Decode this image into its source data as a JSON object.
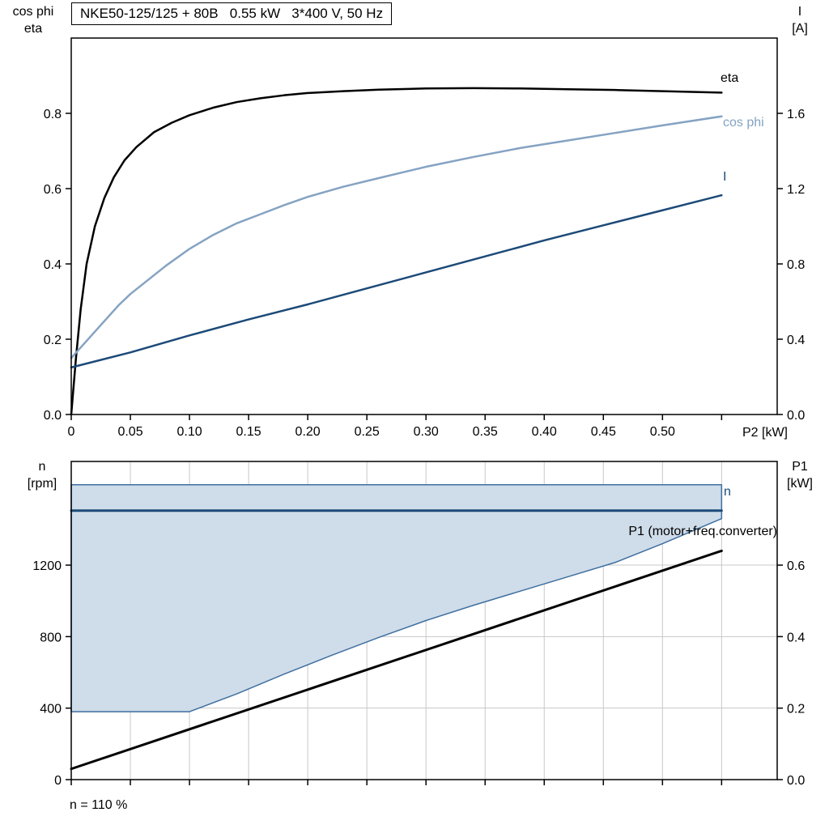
{
  "title": "NKE50-125/125 + 80B   0.55 kW   3*400 V, 50 Hz",
  "colors": {
    "axis": "#000000",
    "grid": "#c8c8c8",
    "cos_phi_blue": "#85a3c2",
    "dark_blue": "#1c4a78",
    "band_fill": "#cfdce9",
    "band_stroke": "#3f6fa0"
  },
  "chart_data": [
    {
      "id": "motor-curves",
      "type": "line",
      "title": "NKE50-125/125 + 80B   0.55 kW   3*400 V, 50 Hz",
      "x_label": "P2 [kW]",
      "x_range": [
        0,
        0.597
      ],
      "x_tick_values": [
        0,
        0.05,
        0.1,
        0.15,
        0.2,
        0.25,
        0.3,
        0.35,
        0.4,
        0.45,
        0.5,
        0.55
      ],
      "x_tick_labels": [
        "0",
        "0.05",
        "0.10",
        "0.15",
        "0.20",
        "0.25",
        "0.30",
        "0.35",
        "0.40",
        "0.45",
        "0.50",
        ""
      ],
      "grid": false,
      "left_axis": {
        "label_lines": [
          "cos phi",
          "eta"
        ],
        "range": [
          0,
          1.0
        ],
        "tick_values": [
          0,
          0.2,
          0.4,
          0.6,
          0.8
        ],
        "tick_labels": [
          "0.0",
          "0.2",
          "0.4",
          "0.6",
          "0.8"
        ]
      },
      "right_axis": {
        "label_lines": [
          "I",
          "[A]"
        ],
        "range": [
          0,
          2.0
        ],
        "tick_values": [
          0,
          0.4,
          0.8,
          1.2,
          1.6
        ],
        "tick_labels": [
          "0.0",
          "0.4",
          "0.8",
          "1.2",
          "1.6"
        ]
      },
      "series": [
        {
          "name": "eta",
          "axis": "left",
          "color": "#000000",
          "width": 2.5,
          "points": [
            [
              0,
              0
            ],
            [
              0.004,
              0.15
            ],
            [
              0.008,
              0.28
            ],
            [
              0.013,
              0.4
            ],
            [
              0.02,
              0.5
            ],
            [
              0.028,
              0.575
            ],
            [
              0.036,
              0.63
            ],
            [
              0.045,
              0.675
            ],
            [
              0.055,
              0.71
            ],
            [
              0.07,
              0.75
            ],
            [
              0.085,
              0.775
            ],
            [
              0.1,
              0.795
            ],
            [
              0.12,
              0.815
            ],
            [
              0.14,
              0.83
            ],
            [
              0.16,
              0.84
            ],
            [
              0.18,
              0.848
            ],
            [
              0.2,
              0.854
            ],
            [
              0.23,
              0.859
            ],
            [
              0.26,
              0.863
            ],
            [
              0.3,
              0.866
            ],
            [
              0.34,
              0.867
            ],
            [
              0.38,
              0.866
            ],
            [
              0.42,
              0.864
            ],
            [
              0.46,
              0.862
            ],
            [
              0.5,
              0.859
            ],
            [
              0.55,
              0.855
            ]
          ]
        },
        {
          "name": "cos phi",
          "axis": "left",
          "color": "#85a3c2",
          "width": 2.5,
          "points": [
            [
              0,
              0.15
            ],
            [
              0.01,
              0.185
            ],
            [
              0.02,
              0.22
            ],
            [
              0.03,
              0.255
            ],
            [
              0.04,
              0.29
            ],
            [
              0.05,
              0.32
            ],
            [
              0.06,
              0.345
            ],
            [
              0.08,
              0.395
            ],
            [
              0.1,
              0.44
            ],
            [
              0.12,
              0.477
            ],
            [
              0.14,
              0.508
            ],
            [
              0.16,
              0.532
            ],
            [
              0.18,
              0.556
            ],
            [
              0.2,
              0.578
            ],
            [
              0.23,
              0.605
            ],
            [
              0.26,
              0.628
            ],
            [
              0.3,
              0.658
            ],
            [
              0.34,
              0.684
            ],
            [
              0.38,
              0.708
            ],
            [
              0.42,
              0.728
            ],
            [
              0.46,
              0.748
            ],
            [
              0.5,
              0.768
            ],
            [
              0.55,
              0.792
            ]
          ]
        },
        {
          "name": "I",
          "axis": "right",
          "color": "#1c4a78",
          "width": 2.5,
          "points": [
            [
              0,
              0.25
            ],
            [
              0.05,
              0.33
            ],
            [
              0.1,
              0.42
            ],
            [
              0.15,
              0.505
            ],
            [
              0.2,
              0.585
            ],
            [
              0.25,
              0.67
            ],
            [
              0.3,
              0.755
            ],
            [
              0.35,
              0.84
            ],
            [
              0.4,
              0.925
            ],
            [
              0.45,
              1.005
            ],
            [
              0.5,
              1.085
            ],
            [
              0.55,
              1.165
            ]
          ]
        }
      ]
    },
    {
      "id": "speed-and-power",
      "type": "line",
      "x_label": "",
      "x_range": [
        0,
        0.597
      ],
      "x_tick_values": [
        0,
        0.05,
        0.1,
        0.15,
        0.2,
        0.25,
        0.3,
        0.35,
        0.4,
        0.45,
        0.5,
        0.55
      ],
      "x_tick_labels": [
        "",
        "",
        "",
        "",
        "",
        "",
        "",
        "",
        "",
        "",
        "",
        ""
      ],
      "grid": true,
      "grid_y_values": [
        400,
        800,
        1200
      ],
      "left_axis": {
        "label_lines": [
          "n",
          "[rpm]"
        ],
        "range": [
          0,
          1780
        ],
        "tick_values": [
          0,
          400,
          800,
          1200
        ],
        "tick_labels": [
          "0",
          "400",
          "800",
          "1200"
        ]
      },
      "right_axis": {
        "label_lines": [
          "P1",
          "[kW]"
        ],
        "range": [
          0,
          0.89
        ],
        "tick_values": [
          0,
          0.2,
          0.4,
          0.6
        ],
        "tick_labels": [
          "0.0",
          "0.2",
          "0.4",
          "0.6"
        ]
      },
      "band": {
        "name": "speed-control-range",
        "fill": "#cfdce9",
        "stroke": "#3f6fa0",
        "top_rpm": 1650,
        "bottom_points": [
          [
            0,
            380
          ],
          [
            0.1,
            380
          ],
          [
            0.14,
            480
          ],
          [
            0.18,
            590
          ],
          [
            0.22,
            695
          ],
          [
            0.26,
            795
          ],
          [
            0.3,
            890
          ],
          [
            0.34,
            975
          ],
          [
            0.38,
            1055
          ],
          [
            0.42,
            1135
          ],
          [
            0.46,
            1215
          ],
          [
            0.5,
            1320
          ],
          [
            0.55,
            1460
          ]
        ]
      },
      "series": [
        {
          "name": "n",
          "axis": "left",
          "color": "#1c4a78",
          "width": 3,
          "points": [
            [
              0,
              1505
            ],
            [
              0.55,
              1505
            ]
          ]
        },
        {
          "name": "P1 (motor+freq.converter)",
          "axis": "right",
          "color": "#000000",
          "width": 3,
          "points": [
            [
              0,
              0.03
            ],
            [
              0.55,
              0.64
            ]
          ]
        }
      ],
      "annotation": "n = 110 %"
    }
  ]
}
